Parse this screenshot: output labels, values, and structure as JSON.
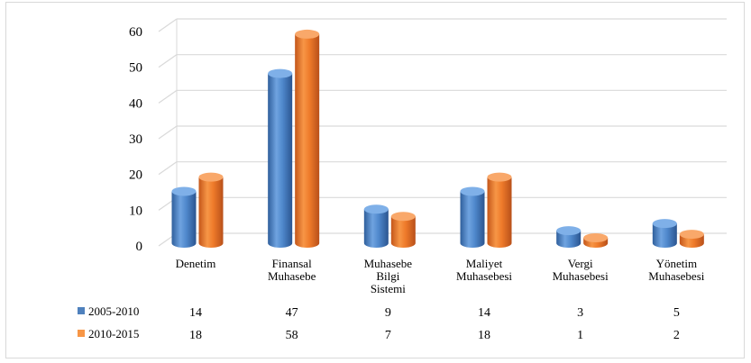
{
  "chart_data": {
    "type": "bar",
    "title": "",
    "xlabel": "",
    "ylabel": "",
    "ylim": [
      0,
      60
    ],
    "yticks": [
      0,
      10,
      20,
      30,
      40,
      50,
      60
    ],
    "grid": true,
    "categories": [
      [
        "Denetim"
      ],
      [
        "Finansal",
        "Muhasebe"
      ],
      [
        "Muhasebe",
        "Bilgi",
        "Sistemi"
      ],
      [
        "Maliyet",
        "Muhasebesi"
      ],
      [
        "Vergi",
        "Muhasebesi"
      ],
      [
        "Yönetim",
        "Muhasebesi"
      ]
    ],
    "series": [
      {
        "name": "2005-2010",
        "values": [
          14,
          47,
          9,
          14,
          3,
          5
        ],
        "color": "#4f81bd"
      },
      {
        "name": "2010-2015",
        "values": [
          18,
          58,
          7,
          18,
          1,
          2
        ],
        "color": "#f79646"
      }
    ],
    "legend": "data-table-below"
  }
}
